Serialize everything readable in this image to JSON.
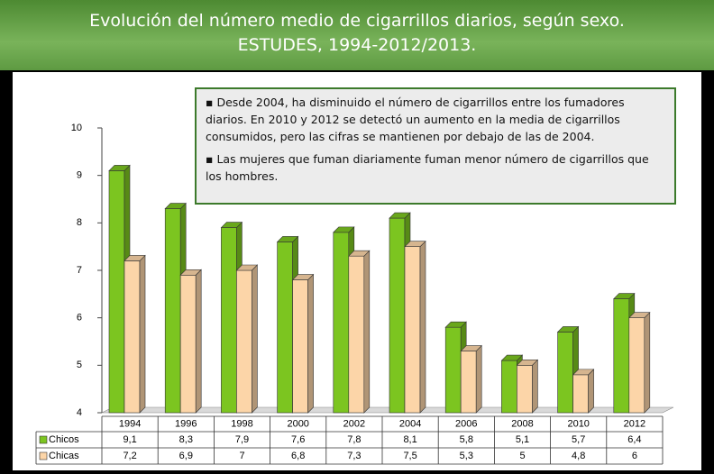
{
  "chart_data": {
    "type": "bar",
    "title": "Evolución del número medio de cigarrillos diarios, según sexo.",
    "subtitle": "ESTUDES, 1994-2012/2013.",
    "annotations": [
      "Desde 2004, ha disminuido el número de cigarrillos entre los fumadores diarios. En 2010 y 2012 se detectó un aumento en la media de cigarrillos consumidos, pero las cifras se mantienen por debajo de las de  2004.",
      "Las mujeres que fuman diariamente fuman menor número de cigarrillos que los hombres."
    ],
    "categories": [
      "1994",
      "1996",
      "1998",
      "2000",
      "2002",
      "2004",
      "2006",
      "2008",
      "2010",
      "2012"
    ],
    "series": [
      {
        "name": "Chicos",
        "color": "#7cc520",
        "values": [
          9.1,
          8.3,
          7.9,
          7.6,
          7.8,
          8.1,
          5.8,
          5.1,
          5.7,
          6.4
        ],
        "value_labels": [
          "9,1",
          "8,3",
          "7,9",
          "7,6",
          "7,8",
          "8,1",
          "5,8",
          "5,1",
          "5,7",
          "6,4"
        ]
      },
      {
        "name": "Chicas",
        "color": "#fcd5a8",
        "values": [
          7.2,
          6.9,
          7,
          6.8,
          7.3,
          7.5,
          5.3,
          5,
          4.8,
          6
        ],
        "value_labels": [
          "7,2",
          "6,9",
          "7",
          "6,8",
          "7,3",
          "7,5",
          "5,3",
          "5",
          "4,8",
          "6"
        ]
      }
    ],
    "ylim": [
      4,
      10
    ],
    "yticks": [
      4,
      5,
      6,
      7,
      8,
      9,
      10
    ]
  }
}
